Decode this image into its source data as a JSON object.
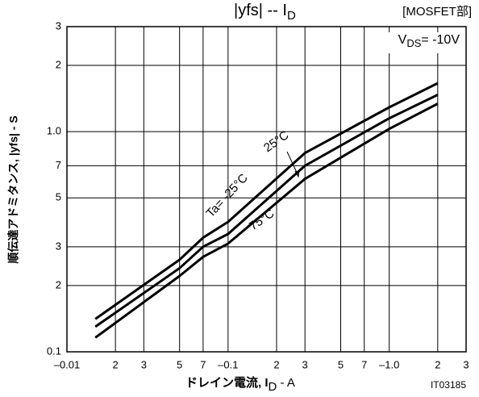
{
  "chart_data": {
    "type": "line",
    "title_parts": [
      "|yfs|  --  I",
      "D"
    ],
    "header_note": "[MOSFET部]",
    "condition_parts": [
      "V",
      "DS",
      "= -10V"
    ],
    "y_label": "順伝達アドミタンス, |yfs| - S",
    "x_label_parts": [
      "ドレイン電流, I",
      "D",
      " - A"
    ],
    "figure_id": "IT03185",
    "annotations": [
      "Ta= -25°C",
      "25°C",
      "75°C"
    ],
    "log_x": true,
    "log_y": true,
    "grid": true,
    "xlim": [
      0.01,
      3
    ],
    "ylim": [
      0.1,
      3
    ],
    "xticks": [
      {
        "value": 0.01,
        "label": "–0.01"
      },
      {
        "value": 0.02,
        "label": "2"
      },
      {
        "value": 0.03,
        "label": "3"
      },
      {
        "value": 0.05,
        "label": "5"
      },
      {
        "value": 0.07,
        "label": "7"
      },
      {
        "value": 0.1,
        "label": "–0.1"
      },
      {
        "value": 0.2,
        "label": "2"
      },
      {
        "value": 0.3,
        "label": "3"
      },
      {
        "value": 0.5,
        "label": "5"
      },
      {
        "value": 0.7,
        "label": "7"
      },
      {
        "value": 1,
        "label": "–1.0"
      },
      {
        "value": 2,
        "label": "2"
      },
      {
        "value": 3,
        "label": "3"
      }
    ],
    "yticks": [
      0.1,
      {
        "value": 0.2,
        "label": "2"
      },
      {
        "value": 0.3,
        "label": "3"
      },
      {
        "value": 0.5,
        "label": "5"
      },
      {
        "value": 0.7,
        "label": "7"
      },
      {
        "value": 1,
        "label": "1.0"
      },
      2,
      3
    ],
    "x": [
      0.015,
      0.05,
      0.07,
      0.1,
      0.3,
      1,
      2
    ],
    "series": [
      {
        "color": "#000000",
        "values": [
          0.141,
          0.262,
          0.33,
          0.389,
          0.8,
          1.29,
          1.66
        ]
      },
      {
        "color": "#000000",
        "values": [
          0.13,
          0.24,
          0.3,
          0.343,
          0.7,
          1.15,
          1.47
        ]
      },
      {
        "color": "#000000",
        "values": [
          0.116,
          0.221,
          0.27,
          0.31,
          0.61,
          1.03,
          1.34
        ]
      }
    ]
  }
}
